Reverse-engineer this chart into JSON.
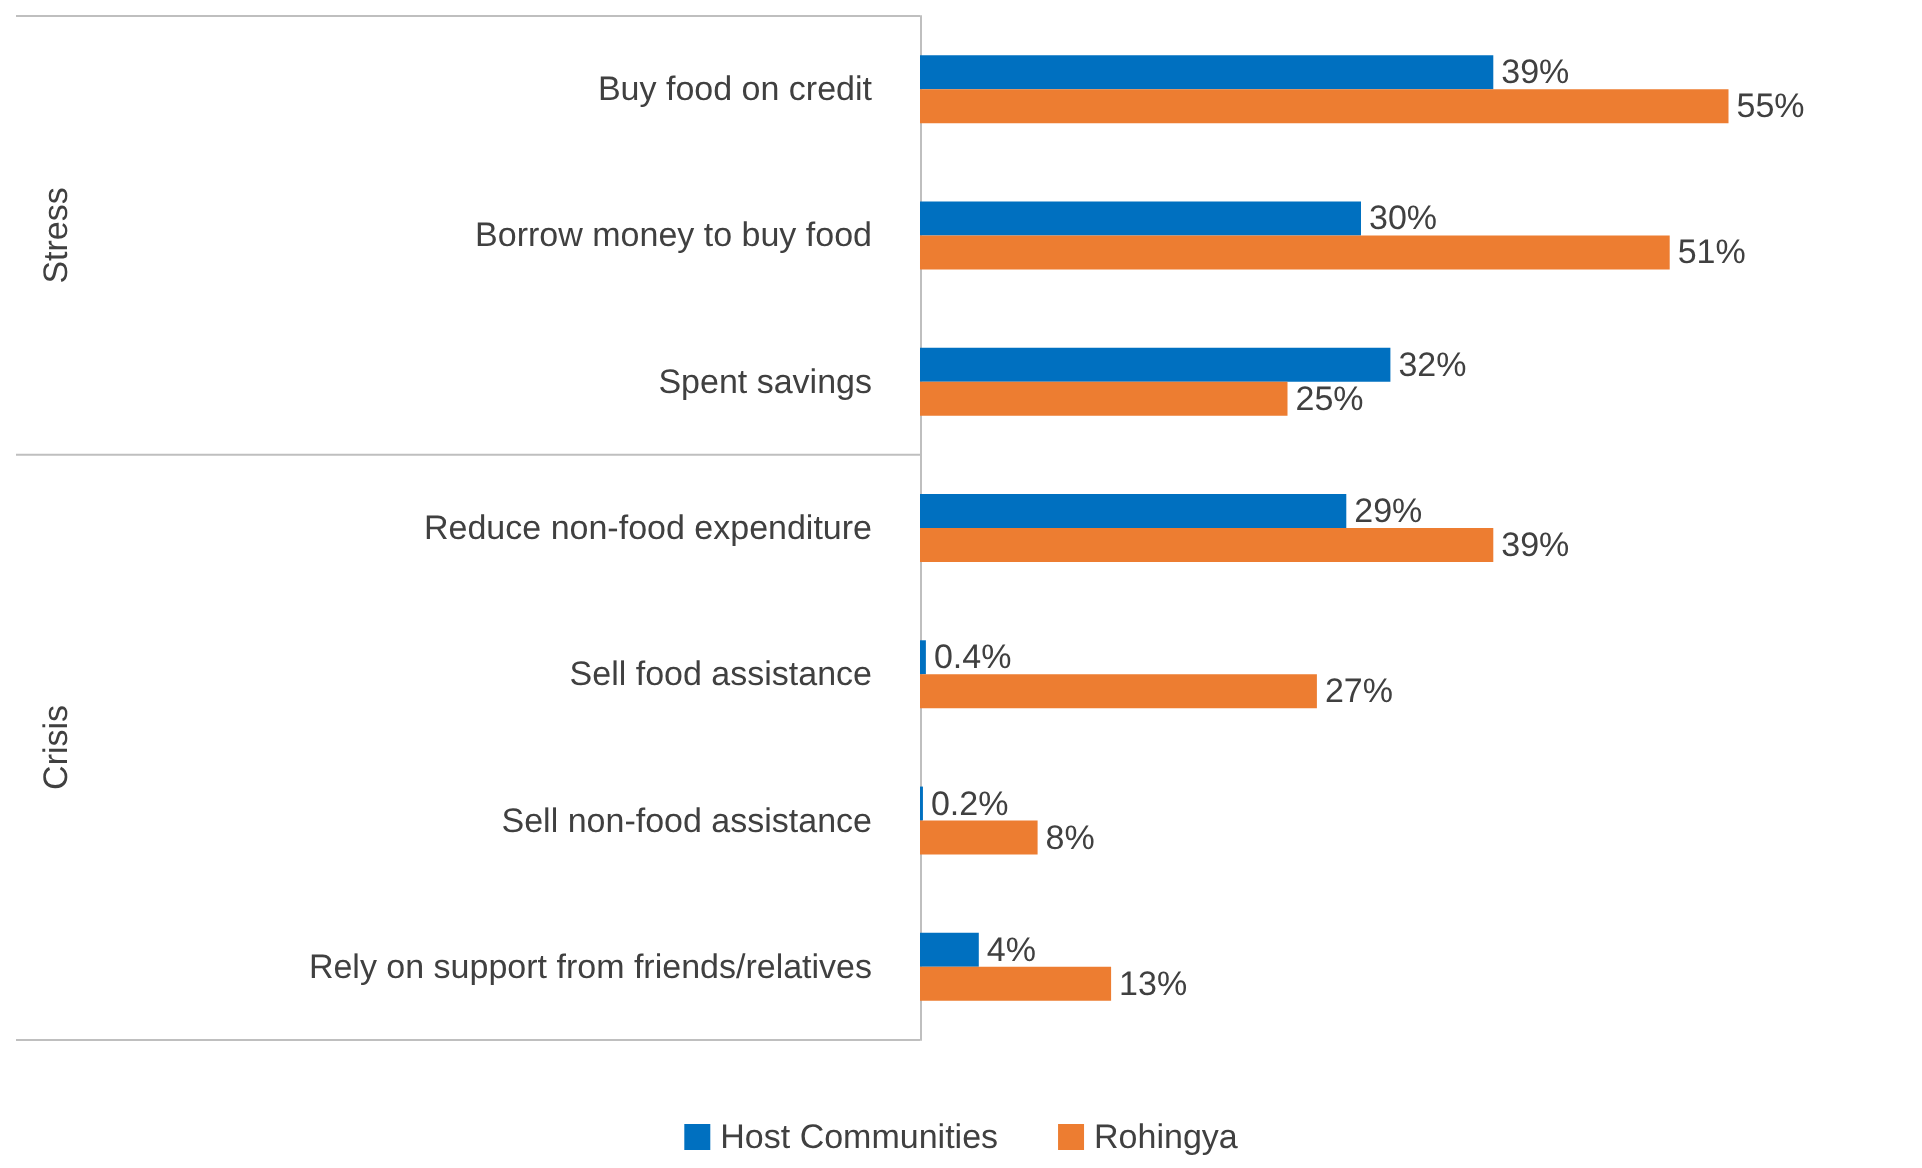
{
  "chart_data": {
    "type": "bar",
    "orientation": "horizontal",
    "tick_labels": "y",
    "categories": [
      "Buy food on credit",
      "Borrow money to buy food",
      "Spent savings",
      "Reduce non-food expenditure",
      "Sell food assistance",
      "Sell non-food assistance",
      "Rely on support from friends/relatives"
    ],
    "series": [
      {
        "name": "Host Communities",
        "color": "#0070c0",
        "values": [
          39,
          30,
          32,
          29,
          0.4,
          0.2,
          4
        ],
        "value_labels": [
          "39%",
          "30%",
          "32%",
          "29%",
          "0.4%",
          "0.2%",
          "4%"
        ]
      },
      {
        "name": "Rohingya",
        "color": "#ed7d31",
        "values": [
          55,
          51,
          25,
          39,
          27,
          8,
          13
        ],
        "value_labels": [
          "55%",
          "51%",
          "25%",
          "39%",
          "27%",
          "8%",
          "13%"
        ]
      }
    ],
    "annotations": [
      "Stress",
      "Crisis"
    ],
    "legend": "bottom"
  }
}
